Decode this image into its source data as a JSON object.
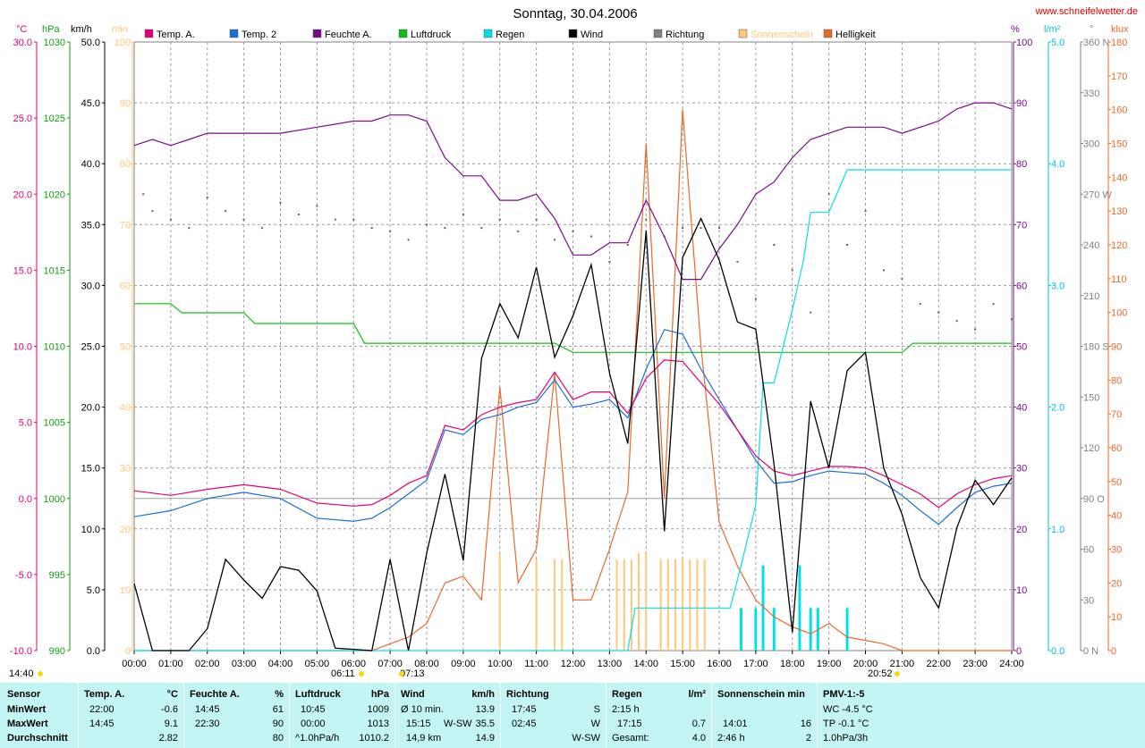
{
  "title": "Sonntag, 30.04.2006",
  "website": "www.schneifelwetter.de",
  "colors": {
    "temp_a": "#e0007a",
    "temp_2": "#1a6fd6",
    "feuchte": "#7a0a8a",
    "luftdruck": "#10c010",
    "regen": "#00e0e8",
    "wind": "#000000",
    "richtung": "#808080",
    "sonnenschein": "#ffc878",
    "helligkeit": "#e86a28",
    "panel": "#c4f5f5"
  },
  "legend": [
    {
      "label": "Temp. A.",
      "color": "#e0007a"
    },
    {
      "label": "Temp. 2",
      "color": "#1a6fd6"
    },
    {
      "label": "Feuchte A.",
      "color": "#7a0a8a"
    },
    {
      "label": "Luftdruck",
      "color": "#10c010"
    },
    {
      "label": "Regen",
      "color": "#00e0e8"
    },
    {
      "label": "Wind",
      "color": "#000000"
    },
    {
      "label": "Richtung",
      "color": "#808080"
    },
    {
      "label": "Sonnenschein",
      "color": "#ffc878"
    },
    {
      "label": "Helligkeit",
      "color": "#e86a28"
    }
  ],
  "axis_units": {
    "temp": "°C",
    "pressure": "hPa",
    "wind": "km/h",
    "sun": "min",
    "humidity": "%",
    "rain": "l/m²",
    "direction": "°",
    "light": "klux"
  },
  "axes": {
    "temp_ticks": [
      "30.0",
      "25.0",
      "20.0",
      "15.0",
      "10.0",
      "5.0",
      "0.0",
      "-5.0",
      "-10.0"
    ],
    "pressure_ticks": [
      "1030",
      "1025",
      "1020",
      "1015",
      "1010",
      "1005",
      "1000",
      "995",
      "990"
    ],
    "wind_ticks": [
      "50.0",
      "45.0",
      "40.0",
      "35.0",
      "30.0",
      "25.0",
      "20.0",
      "15.0",
      "10.0",
      "5.0",
      "0.0"
    ],
    "sun_ticks": [
      "100",
      "90",
      "80",
      "70",
      "60",
      "50",
      "40",
      "30",
      "20",
      "10",
      "0"
    ],
    "humidity_ticks": [
      "100",
      "90",
      "80",
      "70",
      "60",
      "50",
      "40",
      "30",
      "20",
      "10",
      "0"
    ],
    "rain_ticks": [
      "5.0",
      "4.0",
      "3.0",
      "2.0",
      "1.0",
      "0.0"
    ],
    "direction_ticks": [
      "360 N",
      "330",
      "300",
      "270 W",
      "240",
      "210",
      "180 S",
      "150",
      "120",
      "90 O",
      "60",
      "30",
      "0 N"
    ],
    "light_ticks": [
      "180",
      "170",
      "160",
      "150",
      "140",
      "130",
      "120",
      "110",
      "100",
      "90",
      "80",
      "70",
      "60",
      "50",
      "40",
      "30",
      "20",
      "10",
      "0"
    ],
    "time_ticks": [
      "00:00",
      "01:00",
      "02:00",
      "03:00",
      "04:00",
      "05:00",
      "06:00",
      "07:00",
      "08:00",
      "09:00",
      "10:00",
      "11:00",
      "12:00",
      "13:00",
      "14:00",
      "15:00",
      "16:00",
      "17:00",
      "18:00",
      "19:00",
      "20:00",
      "21:00",
      "22:00",
      "23:00",
      "24:00"
    ]
  },
  "sun_markers": {
    "moonrise": "14:40",
    "sunrise": "06:11",
    "noon": "07:13",
    "sunset": "20:52"
  },
  "chart_data": {
    "type": "line",
    "x_unit": "hours",
    "xlim": [
      0,
      24
    ],
    "series": [
      {
        "name": "Temp. A.",
        "unit": "°C",
        "axis": [
          -10,
          30
        ],
        "x": [
          0,
          1,
          2,
          3,
          4,
          5,
          6,
          6.5,
          7,
          7.5,
          8,
          8.5,
          9,
          9.5,
          10,
          10.5,
          11,
          11.5,
          12,
          12.5,
          13,
          13.5,
          14,
          14.5,
          15,
          15.5,
          16,
          16.5,
          17,
          17.5,
          18,
          18.5,
          19,
          19.5,
          20,
          20.5,
          21,
          21.5,
          22,
          22.5,
          23,
          23.5,
          24
        ],
        "y": [
          0.5,
          0.2,
          0.6,
          0.9,
          0.6,
          -0.3,
          -0.5,
          -0.4,
          0.2,
          1.0,
          1.5,
          4.8,
          4.5,
          5.5,
          6.0,
          6.3,
          6.5,
          8.3,
          6.5,
          7.0,
          7.0,
          5.6,
          7.9,
          9.1,
          9.0,
          7.6,
          6.2,
          4.5,
          2.8,
          1.8,
          1.5,
          1.8,
          2.1,
          2.1,
          2.0,
          1.5,
          0.9,
          0.3,
          -0.6,
          0.3,
          0.9,
          1.3,
          1.5
        ]
      },
      {
        "name": "Temp. 2",
        "unit": "°C",
        "axis": [
          -10,
          30
        ],
        "x": [
          0,
          1,
          2,
          3,
          4,
          5,
          6,
          6.5,
          7,
          7.5,
          8,
          8.5,
          9,
          9.5,
          10,
          10.5,
          11,
          11.5,
          12,
          12.5,
          13,
          13.5,
          14,
          14.5,
          15,
          15.5,
          16,
          16.5,
          17,
          17.5,
          18,
          18.5,
          19,
          19.5,
          20,
          20.5,
          21,
          21.5,
          22,
          22.5,
          23,
          23.5,
          24
        ],
        "y": [
          -1.2,
          -0.8,
          0,
          0.4,
          0,
          -1.3,
          -1.5,
          -1.3,
          -0.6,
          0.3,
          1.2,
          4.5,
          4.2,
          5.2,
          5.5,
          6.0,
          6.3,
          7.8,
          6.0,
          6.2,
          6.5,
          5.3,
          8.5,
          11.1,
          10.8,
          8.5,
          6.5,
          4.5,
          2.5,
          1.0,
          1.1,
          1.5,
          1.8,
          1.7,
          1.6,
          1.0,
          0.2,
          -0.8,
          -1.7,
          -0.6,
          0.4,
          0.8,
          1.0
        ]
      },
      {
        "name": "Feuchte A.",
        "unit": "%",
        "axis": [
          0,
          100
        ],
        "x": [
          0,
          0.5,
          1,
          1.5,
          2,
          3,
          4,
          5,
          6,
          6.5,
          7,
          7.5,
          8,
          8.5,
          9,
          9.5,
          10,
          10.5,
          11,
          11.5,
          12,
          12.5,
          13,
          13.5,
          14,
          14.5,
          15,
          15.5,
          16,
          16.5,
          17,
          17.5,
          18,
          18.5,
          19,
          19.5,
          20,
          20.5,
          21,
          21.5,
          22,
          22.5,
          23,
          23.5,
          24
        ],
        "y": [
          83,
          84,
          83,
          84,
          85,
          85,
          85,
          86,
          87,
          87,
          88,
          88,
          87,
          81,
          78,
          78,
          74,
          74,
          75,
          71,
          65,
          65,
          67,
          67,
          74,
          68,
          61,
          61,
          66,
          70,
          75,
          77,
          81,
          84,
          85,
          86,
          86,
          86,
          85,
          86,
          87,
          89,
          90,
          90,
          89
        ]
      },
      {
        "name": "Luftdruck",
        "unit": "hPa",
        "axis": [
          990,
          1030
        ],
        "x": [
          0,
          1,
          1.3,
          3,
          3.3,
          6,
          6.3,
          10.5,
          11,
          11.5,
          12,
          13,
          14,
          20,
          21,
          21.3,
          24
        ],
        "y": [
          1012.8,
          1012.8,
          1012.2,
          1012.2,
          1011.5,
          1011.5,
          1010.2,
          1010.2,
          1010.2,
          1010.2,
          1009.6,
          1009.6,
          1009.6,
          1009.6,
          1009.6,
          1010.2,
          1010.2
        ]
      },
      {
        "name": "Regen",
        "unit": "l/m²",
        "axis": [
          0,
          5
        ],
        "x": [
          0,
          13.5,
          13.7,
          15,
          16.3,
          16.6,
          17,
          17.2,
          17.5,
          18,
          18.3,
          18.5,
          19,
          19.5,
          20,
          24
        ],
        "y": [
          0,
          0,
          0.35,
          0.35,
          0.35,
          0.7,
          1.2,
          2.2,
          2.2,
          2.8,
          3.2,
          3.6,
          3.6,
          3.95,
          3.95,
          3.95
        ]
      },
      {
        "name": "Wind",
        "unit": "km/h",
        "axis": [
          0,
          50
        ],
        "x": [
          0,
          0.5,
          1,
          1.5,
          2,
          2.5,
          3,
          3.5,
          4,
          4.5,
          5,
          5.5,
          6,
          6.5,
          7,
          7.5,
          8,
          8.5,
          9,
          9.5,
          10,
          10.5,
          11,
          11.5,
          12,
          12.5,
          13,
          13.5,
          14,
          14.5,
          15,
          15.5,
          16,
          16.5,
          17,
          17.5,
          18,
          18.5,
          19,
          19.5,
          20,
          20.5,
          21,
          21.5,
          22,
          22.5,
          23,
          23.5,
          24
        ],
        "y": [
          5.5,
          0,
          0,
          0,
          1.8,
          7.5,
          5.8,
          4.3,
          6.9,
          6.6,
          4.9,
          0.2,
          0.1,
          0,
          7.5,
          0,
          8,
          14.5,
          7.4,
          24,
          28.5,
          25.7,
          31.5,
          24.1,
          27.5,
          31.7,
          22.8,
          17,
          34.5,
          9.8,
          32.3,
          35.5,
          32.1,
          27,
          26.4,
          15.3,
          1.5,
          20.5,
          15,
          23,
          24.5,
          15,
          11.2,
          6,
          3.5,
          10.1,
          14,
          12,
          14.2
        ]
      },
      {
        "name": "Helligkeit",
        "unit": "klux",
        "axis": [
          0,
          180
        ],
        "x": [
          0,
          6.5,
          7,
          7.5,
          8,
          8.5,
          9,
          9.5,
          10,
          10.5,
          11,
          11.5,
          12,
          12.5,
          13,
          13.5,
          14,
          14.5,
          15,
          15.5,
          16,
          16.5,
          17,
          17.5,
          18,
          18.5,
          19,
          19.5,
          20,
          20.5,
          21,
          24
        ],
        "y": [
          0,
          0,
          2,
          4,
          8,
          20,
          22,
          15,
          78,
          20,
          30,
          82,
          15,
          15,
          30,
          47,
          150,
          45,
          160,
          90,
          38,
          25,
          15,
          10,
          7,
          5,
          8,
          4,
          3,
          2,
          0,
          0
        ]
      }
    ],
    "sonnenschein_bars": {
      "unit": "min",
      "axis": [
        0,
        100
      ],
      "x": [
        10.0,
        11.0,
        11.5,
        11.7,
        13.2,
        13.4,
        13.6,
        13.8,
        14.0,
        14.4,
        14.6,
        14.8,
        15.0,
        15.2,
        15.4,
        15.6
      ],
      "y": [
        16,
        15,
        15,
        15,
        15,
        15,
        15,
        16,
        16,
        15,
        15,
        15,
        15,
        15,
        15,
        15
      ]
    },
    "richtung_points": {
      "unit": "°",
      "axis": [
        0,
        360
      ],
      "x": [
        0.25,
        0.5,
        1,
        1.5,
        2,
        2.5,
        3,
        3.5,
        4,
        4.5,
        5,
        5.5,
        6,
        6.5,
        7,
        7.5,
        8,
        8.5,
        9,
        9.5,
        10,
        10.5,
        11,
        11.5,
        12,
        12.5,
        13,
        13.5,
        14,
        14.5,
        15,
        15.5,
        16,
        16.5,
        17,
        17.5,
        18,
        18.5,
        19,
        19.5,
        20,
        20.5,
        21,
        21.5,
        22,
        22.5,
        23,
        23.5,
        24
      ],
      "y": [
        270,
        260,
        255,
        250,
        268,
        260,
        255,
        250,
        265,
        258,
        263,
        255,
        255,
        250,
        248,
        243,
        252,
        250,
        258,
        250,
        255,
        248,
        255,
        243,
        248,
        245,
        230,
        240,
        255,
        245,
        250,
        250,
        250,
        230,
        208,
        240,
        225,
        200,
        270,
        240,
        260,
        225,
        220,
        205,
        200,
        195,
        190,
        205,
        196
      ]
    }
  },
  "stats_panel": {
    "sensor": {
      "header": "Sensor",
      "rows": [
        "MinWert",
        "MaxWert",
        "Durchschnitt"
      ]
    },
    "temp_a": {
      "header": "Temp. A.",
      "unit": "°C",
      "min_time": "22:00",
      "min_val": "-0.6",
      "max_time": "14:45",
      "max_val": "9.1",
      "avg": "2.82"
    },
    "feuchte": {
      "header": "Feuchte A.",
      "unit": "%",
      "min_time": "14:45",
      "min_val": "61",
      "max_time": "22:30",
      "max_val": "90",
      "avg": "80"
    },
    "luftdruck": {
      "header": "Luftdruck",
      "unit": "hPa",
      "min_time": "10:45",
      "min_val": "1009",
      "max_time": "00:00",
      "max_val": "1013",
      "trend": "^1.0hPa/h",
      "avg": "1010.2"
    },
    "wind": {
      "header": "Wind",
      "unit": "km/h",
      "avg10_label": "Ø 10 min.",
      "avg10_val": "13.9",
      "max_time": "15:15",
      "max_dir": "W-SW",
      "max_val": "35.5",
      "distance": "14,9 km",
      "avg": "14.9"
    },
    "richtung": {
      "header": "Richtung",
      "min_time": "17:45",
      "min_val": "S",
      "max_time": "02:45",
      "max_val": "W",
      "avg": "W-SW"
    },
    "regen": {
      "header": "Regen",
      "unit": "l/m²",
      "min_duration": "2:15 h",
      "max_time": "17:15",
      "max_val": "0.7",
      "total_label": "Gesamt:",
      "total": "4.0"
    },
    "sonne": {
      "header": "Sonnenschein min",
      "max_time": "14:01",
      "max_val": "16",
      "duration": "2:46 h",
      "avg": "2"
    },
    "pmv": {
      "header": "PMV-1:-5",
      "wc": "WC -4.5 °C",
      "tp": "TP -0.1 °C",
      "trend": "1.0hPa/3h"
    }
  }
}
